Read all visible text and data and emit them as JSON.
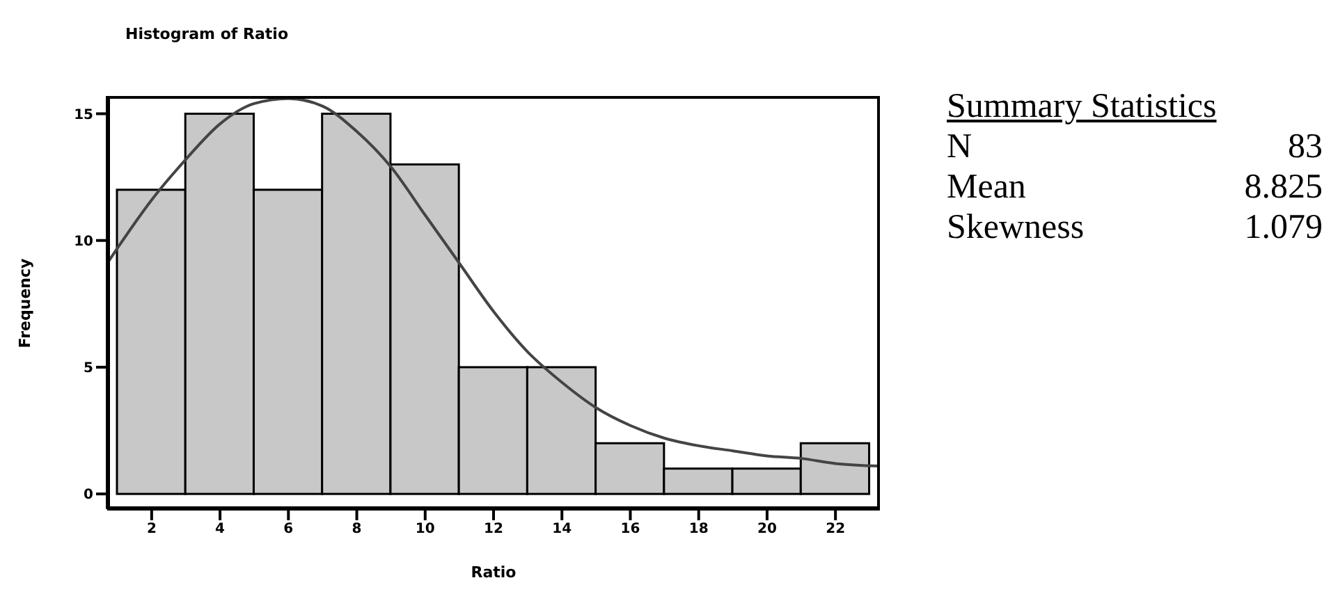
{
  "chart_data": [
    {
      "type": "histogram",
      "title": "Histogram of Ratio",
      "xlabel": "Ratio",
      "ylabel": "Frequency",
      "bins": [
        1,
        3,
        5,
        7,
        9,
        11,
        13,
        15,
        17,
        19,
        21,
        23
      ],
      "values": [
        12,
        15,
        12,
        15,
        13,
        5,
        5,
        2,
        1,
        1,
        2
      ],
      "color": "#c8c8c8",
      "series": [
        {
          "type": "line",
          "color": "#444444",
          "x": [
            0.7,
            1,
            2,
            3,
            4,
            5,
            6,
            7,
            8,
            9,
            10,
            11,
            12,
            13,
            14,
            15,
            16,
            17,
            18,
            19,
            20,
            21,
            22,
            23.3
          ],
          "values": [
            9.1,
            9.7,
            11.6,
            13.2,
            14.6,
            15.4,
            15.6,
            15.3,
            14.3,
            12.9,
            11.0,
            9.1,
            7.2,
            5.6,
            4.4,
            3.4,
            2.7,
            2.2,
            1.9,
            1.7,
            1.5,
            1.4,
            1.2,
            1.1
          ]
        }
      ],
      "xlim": [
        0.7,
        23.3
      ],
      "xticks": [
        2,
        4,
        6,
        8,
        10,
        12,
        14,
        16,
        18,
        20,
        22
      ],
      "ylim": [
        -0.6,
        15.7
      ],
      "yticks": [
        0,
        5,
        10,
        15
      ],
      "grid": false,
      "marker": "none"
    },
    {
      "type": "other",
      "annotations": [
        "Summary Statistics",
        "N",
        "83",
        "Mean",
        "8.825",
        "Skewness",
        "1.079"
      ]
    }
  ]
}
